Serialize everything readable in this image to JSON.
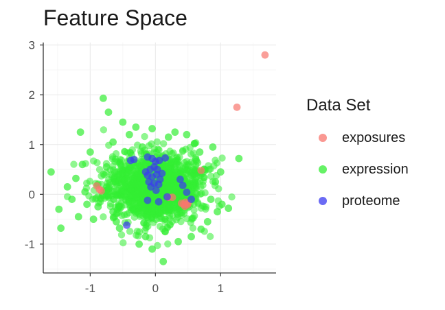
{
  "chart_data": {
    "type": "scatter",
    "title": "Feature Space",
    "xlabel": "",
    "ylabel": "",
    "xlim": [
      -1.72,
      1.85
    ],
    "ylim": [
      -1.58,
      3.05
    ],
    "xticks": [
      -1,
      0,
      1
    ],
    "yticks": [
      -1,
      0,
      1,
      2,
      3
    ],
    "xtick_labels": [
      "-1",
      "0",
      "1"
    ],
    "ytick_labels": [
      "-1",
      "0",
      "1",
      "2",
      "3"
    ],
    "grid": true,
    "legend": {
      "title": "Data Set",
      "position": "right"
    },
    "series": [
      {
        "name": "exposures",
        "color": "#f8766d",
        "points": [
          [
            1.68,
            2.8
          ],
          [
            1.25,
            1.75
          ],
          [
            0.7,
            0.48
          ],
          [
            -0.9,
            0.17
          ],
          [
            -0.86,
            0.1
          ],
          [
            -0.83,
            0.07
          ],
          [
            0.2,
            -0.06
          ],
          [
            0.26,
            -0.06
          ],
          [
            0.4,
            -0.18
          ],
          [
            0.43,
            -0.2
          ],
          [
            0.46,
            -0.16
          ],
          [
            0.49,
            -0.21
          ],
          [
            0.45,
            -0.24
          ],
          [
            0.5,
            -0.18
          ]
        ]
      },
      {
        "name": "expression",
        "color": "#33ee33",
        "points": [
          [
            -1.6,
            0.45
          ],
          [
            -1.48,
            -0.3
          ],
          [
            -1.45,
            -0.68
          ],
          [
            -1.35,
            0.15
          ],
          [
            -1.28,
            -0.1
          ],
          [
            -1.22,
            0.32
          ],
          [
            -1.18,
            -0.45
          ],
          [
            -1.15,
            1.25
          ],
          [
            -1.12,
            0.6
          ],
          [
            -1.05,
            -0.2
          ],
          [
            -0.8,
            1.93
          ],
          [
            -0.72,
            1.65
          ],
          [
            -0.65,
            1.05
          ],
          [
            -0.6,
            -0.55
          ],
          [
            -0.55,
            -0.68
          ],
          [
            -0.5,
            1.45
          ],
          [
            -0.3,
            1.35
          ],
          [
            -0.15,
            -0.85
          ],
          [
            -0.05,
            1.32
          ],
          [
            0.12,
            -1.35
          ],
          [
            0.3,
            1.25
          ],
          [
            0.48,
            1.2
          ],
          [
            0.6,
            1.02
          ],
          [
            0.68,
            0.85
          ],
          [
            0.8,
            -0.55
          ],
          [
            0.85,
            -0.1
          ],
          [
            0.88,
            0.95
          ],
          [
            0.92,
            0.25
          ],
          [
            1.02,
            -0.2
          ],
          [
            1.12,
            -0.28
          ],
          [
            1.28,
            0.72
          ],
          [
            -1.0,
            0.85
          ],
          [
            -1.08,
            0.05
          ],
          [
            -0.95,
            -0.5
          ],
          [
            0.7,
            -0.7
          ],
          [
            0.55,
            -0.85
          ],
          [
            -0.4,
            1.2
          ],
          [
            0.2,
            1.15
          ],
          [
            -0.25,
            -1.0
          ],
          [
            0.35,
            -0.95
          ],
          [
            -0.05,
            -1.1
          ],
          [
            0.75,
            0.5
          ],
          [
            -0.75,
            0.55
          ],
          [
            1.0,
            0.45
          ],
          [
            -0.88,
            -0.25
          ],
          [
            0.95,
            -0.35
          ],
          [
            0.62,
            0.7
          ],
          [
            -0.65,
            -0.35
          ],
          [
            -0.2,
            0.95
          ],
          [
            0.15,
            -0.75
          ]
        ]
      },
      {
        "name": "proteome",
        "color": "#3a3af0",
        "points": [
          [
            -0.38,
            0.68
          ],
          [
            -0.33,
            0.7
          ],
          [
            -0.12,
            0.75
          ],
          [
            -0.05,
            0.72
          ],
          [
            0.0,
            0.66
          ],
          [
            0.06,
            0.68
          ],
          [
            0.15,
            0.73
          ],
          [
            -0.02,
            0.55
          ],
          [
            -0.08,
            0.5
          ],
          [
            0.03,
            0.5
          ],
          [
            -0.12,
            0.38
          ],
          [
            -0.05,
            0.35
          ],
          [
            0.02,
            0.4
          ],
          [
            0.07,
            0.3
          ],
          [
            -0.1,
            0.25
          ],
          [
            -0.02,
            0.22
          ],
          [
            0.05,
            0.2
          ],
          [
            -0.07,
            0.15
          ],
          [
            0.01,
            0.08
          ],
          [
            -0.15,
            0.45
          ],
          [
            0.1,
            0.42
          ],
          [
            0.38,
            0.3
          ],
          [
            0.42,
            0.18
          ],
          [
            0.48,
            0.04
          ],
          [
            0.18,
            -0.05
          ],
          [
            0.05,
            -0.15
          ],
          [
            -0.12,
            -0.12
          ],
          [
            0.55,
            -0.1
          ],
          [
            -0.44,
            -0.62
          ]
        ]
      }
    ]
  }
}
